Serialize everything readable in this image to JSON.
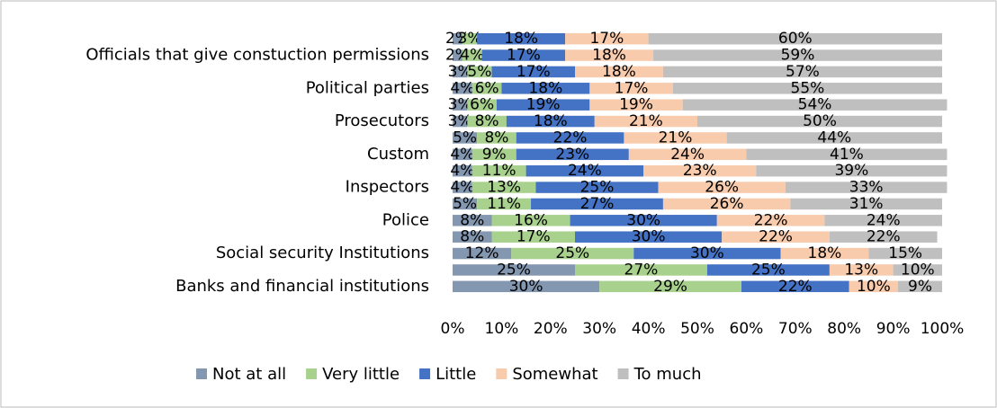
{
  "chart_data": {
    "type": "stacked_barh",
    "categories": [
      null,
      "Officials that give constuction permissions",
      null,
      "Political parties",
      null,
      "Prosecutors",
      null,
      "Custom",
      null,
      "Inspectors",
      null,
      "Police",
      null,
      "Social security Institutions",
      null,
      "Banks and financial institutions"
    ],
    "series": [
      {
        "name": "Not at all",
        "color": "#8497b0",
        "values": [
          2,
          2,
          3,
          4,
          3,
          3,
          5,
          4,
          4,
          4,
          5,
          8,
          8,
          12,
          25,
          30
        ],
        "value_labels": [
          "2%",
          "2%",
          "3%",
          "4%",
          "3%",
          "3%",
          "5%",
          "4%",
          "4%",
          "4%",
          "5%",
          "8%",
          "8%",
          "12%",
          "25%",
          "30%"
        ]
      },
      {
        "name": "Very little",
        "color": "#a9d18e",
        "values": [
          3,
          4,
          5,
          6,
          6,
          8,
          8,
          9,
          11,
          13,
          11,
          16,
          17,
          25,
          27,
          29
        ],
        "value_labels": [
          "3%",
          "4%",
          "5%",
          "6%",
          "6%",
          "8%",
          "8%",
          "9%",
          "11%",
          "13%",
          "11%",
          "16%",
          "17%",
          "25%",
          "27%",
          "29%"
        ]
      },
      {
        "name": "Little",
        "color": "#4472c4",
        "values": [
          18,
          17,
          17,
          18,
          19,
          18,
          22,
          23,
          24,
          25,
          27,
          30,
          30,
          30,
          25,
          22
        ],
        "value_labels": [
          "18%",
          "17%",
          "17%",
          "18%",
          "19%",
          "18%",
          "22%",
          "23%",
          "24%",
          "25%",
          "27%",
          "30%",
          "30%",
          "30%",
          "25%",
          "22%"
        ]
      },
      {
        "name": "Somewhat",
        "color": "#f8cbad",
        "values": [
          17,
          18,
          18,
          17,
          19,
          21,
          21,
          24,
          23,
          26,
          26,
          22,
          22,
          18,
          13,
          10
        ],
        "value_labels": [
          "17%",
          "18%",
          "18%",
          "17%",
          "19%",
          "21%",
          "21%",
          "24%",
          "23%",
          "26%",
          "26%",
          "22%",
          "22%",
          "18%",
          "13%",
          "10%"
        ]
      },
      {
        "name": "To much",
        "color": "#bfbfbf",
        "values": [
          60,
          59,
          57,
          55,
          54,
          50,
          44,
          41,
          39,
          33,
          31,
          24,
          22,
          15,
          10,
          9
        ],
        "value_labels": [
          "60%",
          "59%",
          "57%",
          "55%",
          "54%",
          "50%",
          "44%",
          "41%",
          "39%",
          "33%",
          "31%",
          "24%",
          "22%",
          "15%",
          "10%",
          "9%"
        ]
      }
    ],
    "xlim": [
      0,
      100
    ],
    "xticks": [
      {
        "value": 0,
        "label": "0%"
      },
      {
        "value": 10,
        "label": "10%"
      },
      {
        "value": 20,
        "label": "20%"
      },
      {
        "value": 30,
        "label": "30%"
      },
      {
        "value": 40,
        "label": "40%"
      },
      {
        "value": 50,
        "label": "50%"
      },
      {
        "value": 60,
        "label": "60%"
      },
      {
        "value": 70,
        "label": "70%"
      },
      {
        "value": 80,
        "label": "80%"
      },
      {
        "value": 90,
        "label": "90%"
      },
      {
        "value": 100,
        "label": "100%"
      }
    ],
    "legend": "bottom"
  }
}
